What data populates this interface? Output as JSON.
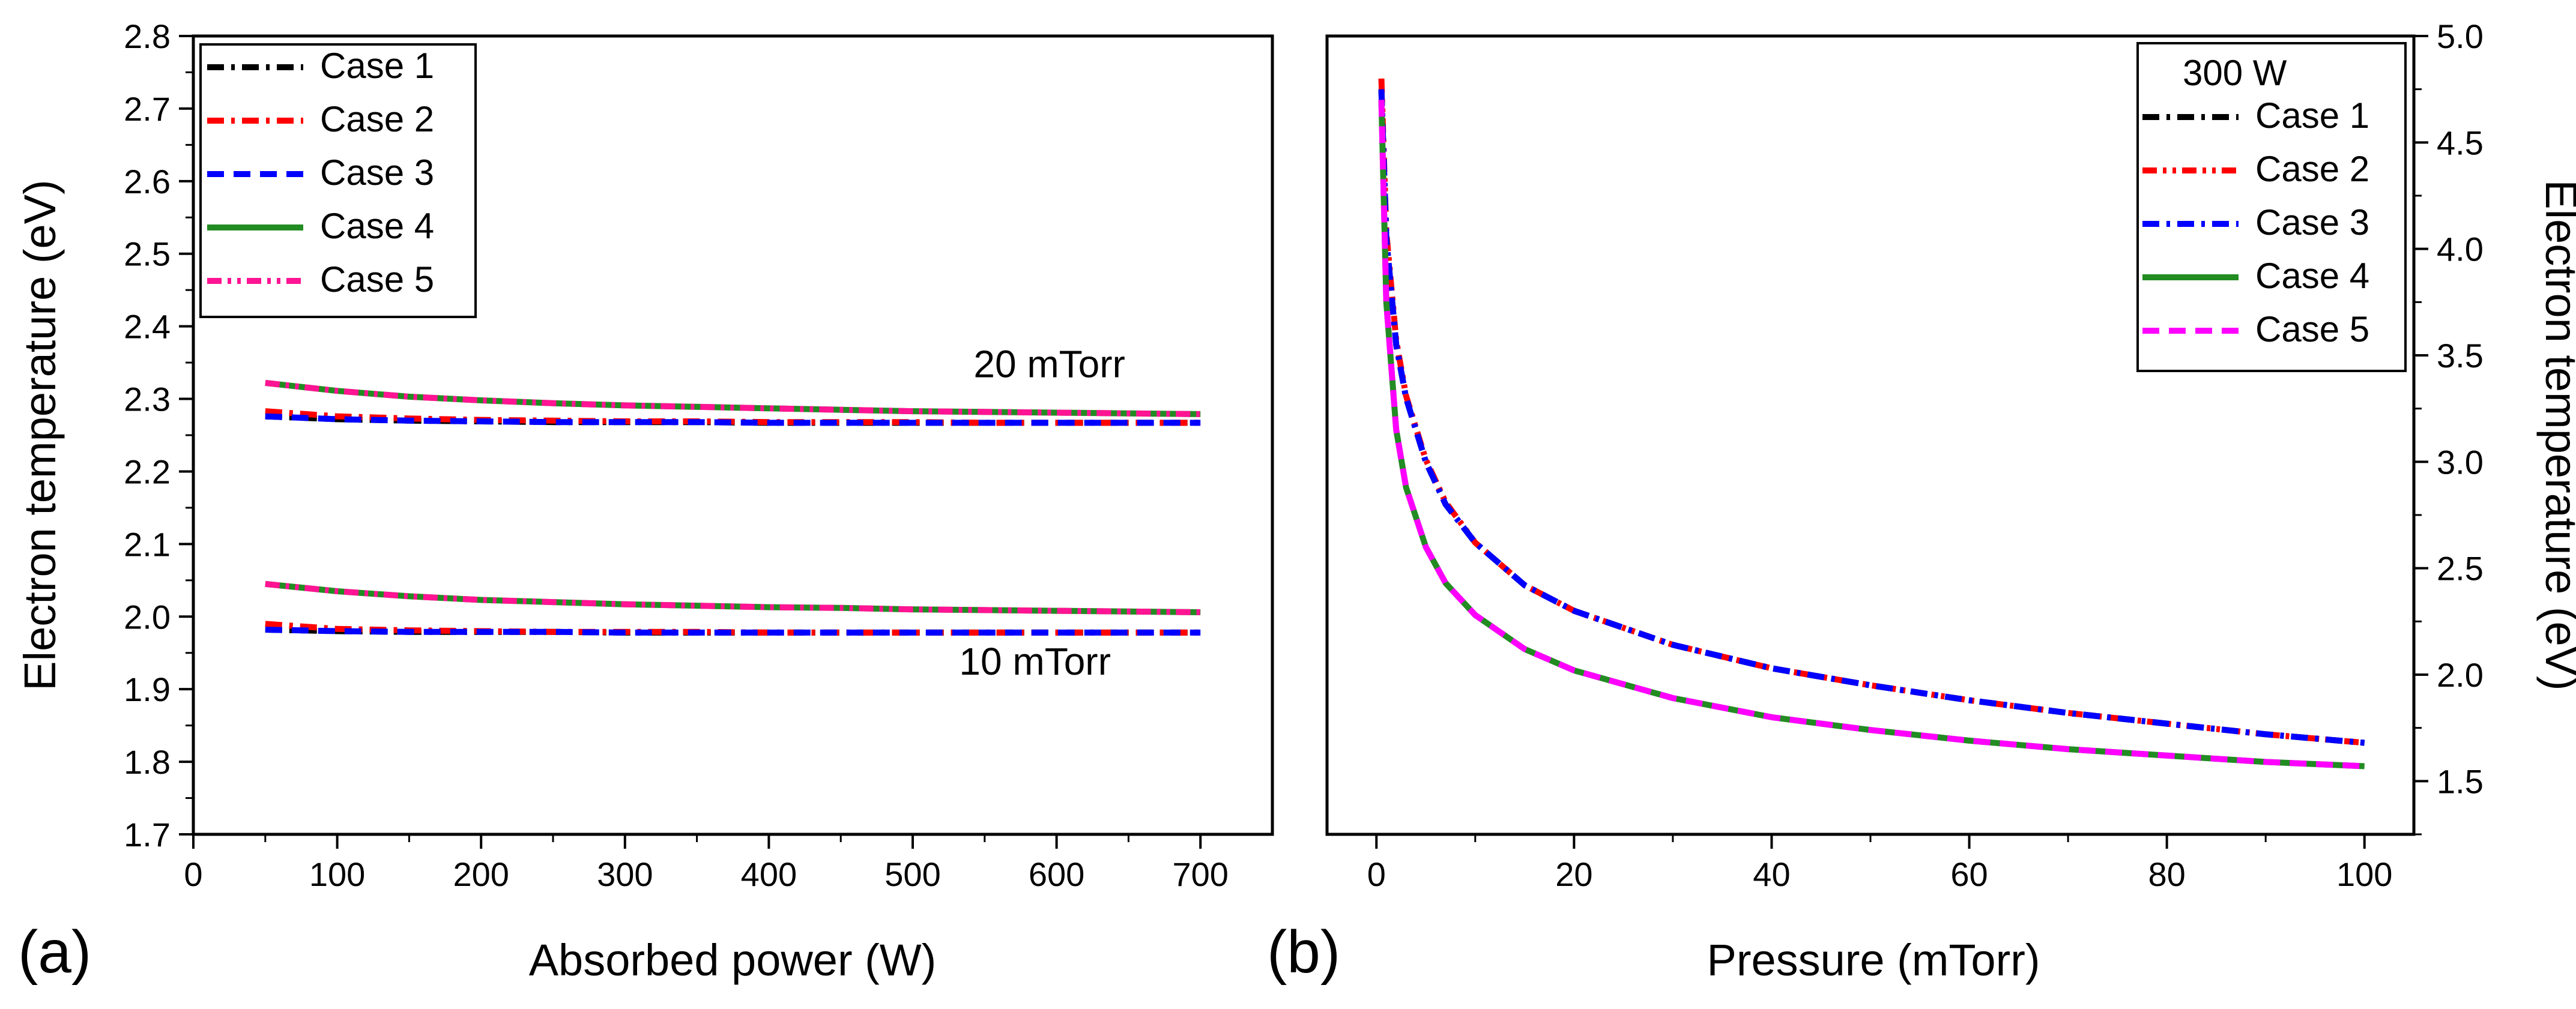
{
  "chart_data": [
    {
      "type": "line",
      "panel_label": "(a)",
      "xlabel": "Absorbed power (W)",
      "ylabel": "Electron temperature (eV)",
      "xlim": [
        0,
        750
      ],
      "ylim": [
        1.7,
        2.8
      ],
      "xticks": [
        0,
        100,
        200,
        300,
        400,
        500,
        600,
        700
      ],
      "xtick_labels": [
        "0",
        "100",
        "200",
        "300",
        "400",
        "500",
        "600",
        "700"
      ],
      "yticks": [
        1.7,
        1.8,
        1.9,
        2.0,
        2.1,
        2.2,
        2.3,
        2.4,
        2.5,
        2.6,
        2.7,
        2.8
      ],
      "ytick_labels": [
        "1.7",
        "1.8",
        "1.9",
        "2.0",
        "2.1",
        "2.2",
        "2.3",
        "2.4",
        "2.5",
        "2.6",
        "2.7",
        "2.8"
      ],
      "legend_position": "top-left",
      "annotations": [
        {
          "text": "20 mTorr",
          "x": 595,
          "y": 2.33
        },
        {
          "text": "10 mTorr",
          "x": 585,
          "y": 1.92
        }
      ],
      "x": [
        50,
        100,
        150,
        200,
        250,
        300,
        350,
        400,
        450,
        500,
        550,
        600,
        650,
        700
      ],
      "series": [
        {
          "name": "Case 1 (20 mTorr)",
          "legend": "Case 1",
          "color": "#000000",
          "dash": "dashdot",
          "values": [
            2.276,
            2.272,
            2.27,
            2.269,
            2.268,
            2.268,
            2.268,
            2.267,
            2.267,
            2.267,
            2.267,
            2.267,
            2.267,
            2.267
          ]
        },
        {
          "name": "Case 2 (20 mTorr)",
          "legend": "Case 2",
          "color": "#ff0000",
          "dash": "dashdot",
          "values": [
            2.283,
            2.276,
            2.273,
            2.271,
            2.27,
            2.269,
            2.269,
            2.268,
            2.268,
            2.268,
            2.267,
            2.267,
            2.267,
            2.267
          ]
        },
        {
          "name": "Case 3 (20 mTorr)",
          "legend": "Case 3",
          "color": "#0000ff",
          "dash": "dash",
          "values": [
            2.276,
            2.272,
            2.27,
            2.269,
            2.268,
            2.268,
            2.268,
            2.267,
            2.267,
            2.267,
            2.267,
            2.267,
            2.267,
            2.267
          ]
        },
        {
          "name": "Case 4 (20 mTorr)",
          "legend": "Case 4",
          "color": "#228b22",
          "dash": "solid",
          "values": [
            2.322,
            2.311,
            2.303,
            2.298,
            2.294,
            2.291,
            2.289,
            2.287,
            2.285,
            2.283,
            2.282,
            2.281,
            2.28,
            2.279
          ]
        },
        {
          "name": "Case 5 (20 mTorr)",
          "legend": "Case 5",
          "color": "#ff1493",
          "dash": "dashdotdot",
          "values": [
            2.322,
            2.311,
            2.303,
            2.298,
            2.294,
            2.291,
            2.289,
            2.287,
            2.285,
            2.283,
            2.282,
            2.281,
            2.28,
            2.279
          ]
        },
        {
          "name": "Case 1 (10 mTorr)",
          "color": "#000000",
          "dash": "dashdot",
          "values": [
            1.982,
            1.98,
            1.979,
            1.979,
            1.979,
            1.978,
            1.978,
            1.978,
            1.978,
            1.978,
            1.978,
            1.978,
            1.978,
            1.978
          ]
        },
        {
          "name": "Case 2 (10 mTorr)",
          "color": "#ff0000",
          "dash": "dashdot",
          "values": [
            1.99,
            1.983,
            1.981,
            1.98,
            1.979,
            1.979,
            1.979,
            1.978,
            1.978,
            1.978,
            1.978,
            1.978,
            1.978,
            1.978
          ]
        },
        {
          "name": "Case 3 (10 mTorr)",
          "color": "#0000ff",
          "dash": "dash",
          "values": [
            1.982,
            1.98,
            1.979,
            1.979,
            1.979,
            1.978,
            1.978,
            1.978,
            1.978,
            1.978,
            1.978,
            1.978,
            1.978,
            1.978
          ]
        },
        {
          "name": "Case 4 (10 mTorr)",
          "color": "#228b22",
          "dash": "solid",
          "values": [
            2.045,
            2.035,
            2.028,
            2.023,
            2.02,
            2.017,
            2.015,
            2.013,
            2.012,
            2.01,
            2.009,
            2.008,
            2.007,
            2.006
          ]
        },
        {
          "name": "Case 5 (10 mTorr)",
          "color": "#ff1493",
          "dash": "dashdotdot",
          "values": [
            2.045,
            2.035,
            2.028,
            2.023,
            2.02,
            2.017,
            2.015,
            2.013,
            2.012,
            2.01,
            2.009,
            2.008,
            2.007,
            2.006
          ]
        }
      ]
    },
    {
      "type": "line",
      "panel_label": "(b)",
      "xlabel": "Pressure (mTorr)",
      "ylabel": "Electron temperature (eV)",
      "yaxis_side": "right",
      "xlim": [
        -5,
        105
      ],
      "ylim": [
        1.25,
        5.0
      ],
      "xticks": [
        0,
        20,
        40,
        60,
        80,
        100
      ],
      "xtick_labels": [
        "0",
        "20",
        "40",
        "60",
        "80",
        "100"
      ],
      "yticks": [
        1.5,
        2.0,
        2.5,
        3.0,
        3.5,
        4.0,
        4.5,
        5.0
      ],
      "ytick_labels": [
        "1.5",
        "2.0",
        "2.5",
        "3.0",
        "3.5",
        "4.0",
        "4.5",
        "5.0"
      ],
      "legend_title": "300 W",
      "legend_position": "top-right",
      "x": [
        0.5,
        1,
        2,
        3,
        5,
        7,
        10,
        15,
        20,
        30,
        40,
        50,
        60,
        70,
        80,
        90,
        100
      ],
      "series": [
        {
          "name": "Case 1",
          "color": "#000000",
          "dash": "dashdot",
          "values": [
            4.75,
            4.05,
            3.55,
            3.3,
            3.0,
            2.8,
            2.62,
            2.42,
            2.3,
            2.14,
            2.03,
            1.95,
            1.88,
            1.82,
            1.77,
            1.72,
            1.68
          ]
        },
        {
          "name": "Case 2",
          "color": "#ff0000",
          "dash": "dashdotdot",
          "values": [
            4.8,
            4.08,
            3.57,
            3.31,
            3.01,
            2.81,
            2.62,
            2.42,
            2.3,
            2.14,
            2.03,
            1.95,
            1.88,
            1.82,
            1.77,
            1.72,
            1.68
          ]
        },
        {
          "name": "Case 3",
          "color": "#0000ff",
          "dash": "dashdot",
          "values": [
            4.75,
            4.05,
            3.55,
            3.3,
            3.0,
            2.8,
            2.62,
            2.42,
            2.3,
            2.14,
            2.03,
            1.95,
            1.88,
            1.82,
            1.77,
            1.72,
            1.68
          ]
        },
        {
          "name": "Case 4",
          "color": "#228b22",
          "dash": "solid",
          "values": [
            4.7,
            3.75,
            3.15,
            2.88,
            2.6,
            2.43,
            2.28,
            2.12,
            2.02,
            1.89,
            1.8,
            1.74,
            1.69,
            1.65,
            1.62,
            1.59,
            1.57
          ]
        },
        {
          "name": "Case 5",
          "color": "#ff00ff",
          "dash": "dash",
          "values": [
            4.7,
            3.75,
            3.15,
            2.88,
            2.6,
            2.43,
            2.28,
            2.12,
            2.02,
            1.89,
            1.8,
            1.74,
            1.69,
            1.65,
            1.62,
            1.59,
            1.57
          ]
        }
      ]
    }
  ]
}
